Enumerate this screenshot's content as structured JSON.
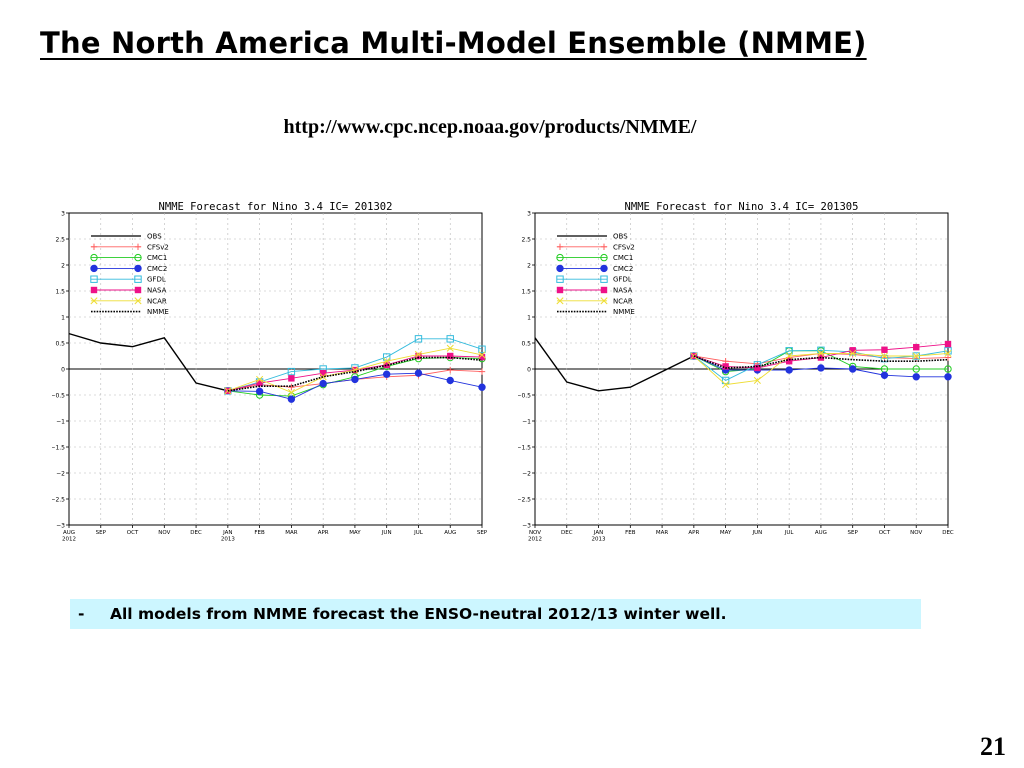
{
  "slide": {
    "title": "The North America Multi-Model Ensemble (NMME)",
    "url": "http://www.cpc.ncep.noaa.gov/products/NMME/",
    "bullet_dash": "-",
    "bullet_text": "All models from NMME forecast the ENSO-neutral 2012/13 winter well.",
    "page_number": "21"
  },
  "colors": {
    "OBS": "#000000",
    "CFSv2": "#ff6060",
    "CMC1": "#22cc22",
    "CMC2": "#2233dd",
    "GFDL": "#33bbdd",
    "NASA": "#ee1188",
    "NCAR": "#eedd33",
    "NMME": "#000000"
  },
  "chart_data": [
    {
      "type": "line",
      "title": "NMME Forecast for Nino 3.4   IC= 201302",
      "x_labels": [
        "AUG\n2012",
        "SEP",
        "OCT",
        "NOV",
        "DEC",
        "JAN\n2013",
        "FEB",
        "MAR",
        "APR",
        "MAY",
        "JUN",
        "JUL",
        "AUG",
        "SEP"
      ],
      "ylim": [
        -3,
        3
      ],
      "yticks": [
        "3",
        "2.5",
        "2",
        "1.5",
        "1",
        "0.5",
        "0",
        "−0.5",
        "−1",
        "−1.5",
        "−2",
        "−2.5",
        "−3"
      ],
      "grid": true,
      "legend_position": "top-left",
      "series": [
        {
          "name": "OBS",
          "style": "solid",
          "marker": "none",
          "start": 0,
          "values": [
            0.68,
            0.5,
            0.43,
            0.6,
            -0.27,
            -0.42
          ]
        },
        {
          "name": "CFSv2",
          "style": "solid",
          "marker": "plus",
          "start": 5,
          "values": [
            -0.42,
            -0.3,
            -0.35,
            -0.28,
            -0.2,
            -0.15,
            -0.12,
            -0.02,
            -0.05
          ]
        },
        {
          "name": "CMC1",
          "style": "solid",
          "marker": "circle-open",
          "start": 5,
          "values": [
            -0.42,
            -0.5,
            -0.52,
            -0.3,
            -0.15,
            0.05,
            0.2,
            0.22,
            0.2
          ]
        },
        {
          "name": "CMC2",
          "style": "solid",
          "marker": "circle-filled",
          "start": 5,
          "values": [
            -0.42,
            -0.43,
            -0.58,
            -0.28,
            -0.2,
            -0.1,
            -0.08,
            -0.22,
            -0.35
          ]
        },
        {
          "name": "GFDL",
          "style": "solid",
          "marker": "square-open",
          "start": 5,
          "values": [
            -0.42,
            -0.25,
            -0.05,
            0.0,
            0.02,
            0.23,
            0.58,
            0.58,
            0.38
          ]
        },
        {
          "name": "NASA",
          "style": "solid",
          "marker": "square-filled",
          "start": 5,
          "values": [
            -0.42,
            -0.27,
            -0.18,
            -0.08,
            -0.02,
            0.08,
            0.25,
            0.25,
            0.23
          ]
        },
        {
          "name": "NCAR",
          "style": "solid",
          "marker": "x",
          "start": 5,
          "values": [
            -0.42,
            -0.2,
            -0.45,
            -0.15,
            -0.02,
            0.15,
            0.28,
            0.4,
            0.27
          ]
        },
        {
          "name": "NMME",
          "style": "dotted",
          "marker": "none",
          "start": 5,
          "values": [
            -0.42,
            -0.33,
            -0.33,
            -0.15,
            -0.05,
            0.07,
            0.22,
            0.22,
            0.17
          ]
        }
      ]
    },
    {
      "type": "line",
      "title": "NMME Forecast for Nino 3.4   IC= 201305",
      "x_labels": [
        "NOV\n2012",
        "DEC",
        "JAN\n2013",
        "FEB",
        "MAR",
        "APR",
        "MAY",
        "JUN",
        "JUL",
        "AUG",
        "SEP",
        "OCT",
        "NOV",
        "DEC"
      ],
      "ylim": [
        -3,
        3
      ],
      "yticks": [
        "3",
        "2.5",
        "2",
        "1.5",
        "1",
        "0.5",
        "0",
        "−0.5",
        "−1",
        "−1.5",
        "−2",
        "−2.5",
        "−3"
      ],
      "grid": true,
      "legend_position": "top-left",
      "series": [
        {
          "name": "OBS",
          "style": "solid",
          "marker": "none",
          "start": 0,
          "values": [
            0.6,
            -0.25,
            -0.42,
            -0.35,
            -0.05,
            0.25
          ]
        },
        {
          "name": "CFSv2",
          "style": "solid",
          "marker": "plus",
          "start": 5,
          "values": [
            0.25,
            0.15,
            0.1,
            0.22,
            0.3,
            0.28,
            0.22,
            0.2,
            0.22
          ]
        },
        {
          "name": "CMC1",
          "style": "solid",
          "marker": "circle-open",
          "start": 5,
          "values": [
            0.25,
            -0.05,
            0.0,
            0.35,
            0.35,
            0.05,
            0.0,
            0.0,
            0.0
          ]
        },
        {
          "name": "CMC2",
          "style": "solid",
          "marker": "circle-filled",
          "start": 5,
          "values": [
            0.25,
            -0.02,
            -0.02,
            -0.02,
            0.02,
            0.0,
            -0.12,
            -0.15,
            -0.15
          ]
        },
        {
          "name": "GFDL",
          "style": "solid",
          "marker": "square-open",
          "start": 5,
          "values": [
            0.25,
            -0.22,
            0.08,
            0.35,
            0.36,
            0.33,
            0.2,
            0.25,
            0.35
          ]
        },
        {
          "name": "NASA",
          "style": "solid",
          "marker": "square-filled",
          "start": 5,
          "values": [
            0.25,
            0.05,
            0.02,
            0.15,
            0.22,
            0.36,
            0.37,
            0.42,
            0.48
          ]
        },
        {
          "name": "NCAR",
          "style": "solid",
          "marker": "x",
          "start": 5,
          "values": [
            0.25,
            -0.3,
            -0.22,
            0.25,
            0.3,
            0.3,
            0.25,
            0.25,
            0.3
          ]
        },
        {
          "name": "NMME",
          "style": "dotted",
          "marker": "none",
          "start": 5,
          "values": [
            0.25,
            0.02,
            0.05,
            0.18,
            0.22,
            0.18,
            0.15,
            0.15,
            0.18
          ]
        }
      ]
    }
  ]
}
